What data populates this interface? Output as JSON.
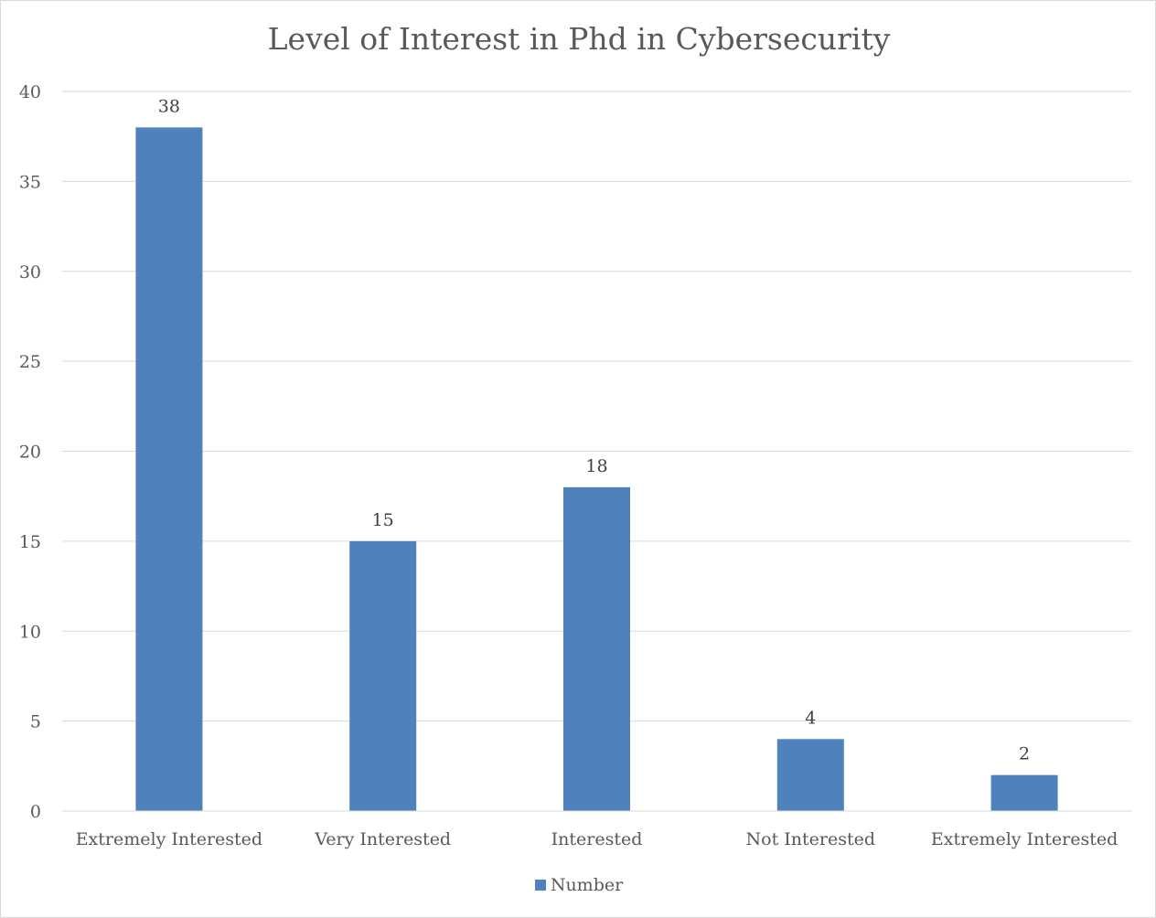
{
  "chart_data": {
    "type": "bar",
    "title": "Level of Interest in Phd in Cybersecurity",
    "categories": [
      "Extremely Interested",
      "Very Interested",
      "Interested",
      "Not Interested",
      "Extremely Interested"
    ],
    "series": [
      {
        "name": "Number",
        "values": [
          38,
          15,
          18,
          4,
          2
        ],
        "color": "#4f81bd"
      }
    ],
    "data_labels": [
      "38",
      "15",
      "18",
      "4",
      "2"
    ],
    "xlabel": "",
    "ylabel": "",
    "ylim": [
      0,
      40
    ],
    "yticks": [
      "0",
      "5",
      "10",
      "15",
      "20",
      "25",
      "30",
      "35",
      "40"
    ],
    "grid": true,
    "legend_position": "bottom"
  }
}
